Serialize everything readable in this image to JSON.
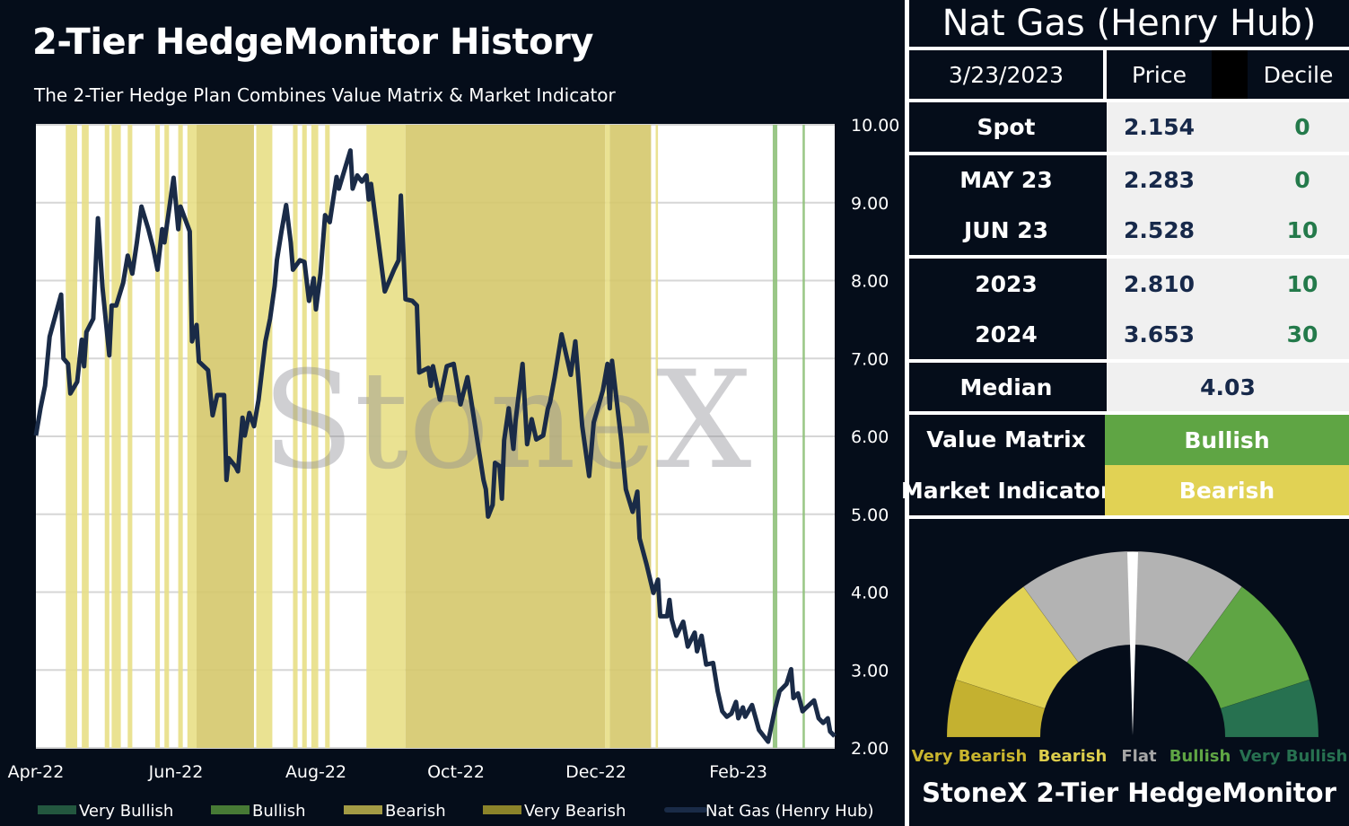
{
  "left": {
    "title": "2-Tier HedgeMonitor History",
    "subtitle": "The 2-Tier Hedge Plan Combines Value Matrix & Market Indicator",
    "watermark": "StoneX"
  },
  "chart_data": {
    "type": "line",
    "title": "2-Tier HedgeMonitor History",
    "subtitle": "The 2-Tier Hedge Plan Combines Value Matrix & Market Indicator",
    "xlabel": "",
    "ylabel": "",
    "xlim": [
      "2022-04-01",
      "2023-03-15"
    ],
    "ylim": [
      2,
      10
    ],
    "grid": true,
    "y_axis_side": "right",
    "x_ticks": [
      {
        "date": "2022-04-01",
        "label": "Apr-22"
      },
      {
        "date": "2022-06-01",
        "label": "Jun-22"
      },
      {
        "date": "2022-08-01",
        "label": "Aug-22"
      },
      {
        "date": "2022-10-01",
        "label": "Oct-22"
      },
      {
        "date": "2022-12-01",
        "label": "Dec-22"
      },
      {
        "date": "2023-02-01",
        "label": "Feb-23"
      }
    ],
    "y_ticks": [
      "2.00",
      "3.00",
      "4.00",
      "5.00",
      "6.00",
      "7.00",
      "8.00",
      "9.00",
      "10.00"
    ],
    "legend_position": "bottom",
    "legend": [
      {
        "name": "Very Bullish",
        "color": "#23573f",
        "kind": "box"
      },
      {
        "name": "Bullish",
        "color": "#477a35",
        "kind": "box"
      },
      {
        "name": "Bearish",
        "color": "#a39b45",
        "kind": "box"
      },
      {
        "name": "Very Bearish",
        "color": "#8b832a",
        "kind": "box"
      },
      {
        "name": "Nat Gas (Henry Hub)",
        "color": "#1a2b47",
        "kind": "line"
      }
    ],
    "band_colors": {
      "Bearish": "#e8df86",
      "Very Bearish": "#d5c86c",
      "Bullish": "#8fc17a",
      "Very Bullish": "#23573f"
    },
    "bands": [
      {
        "start": "2022-04-14",
        "end": "2022-04-19",
        "signal": "Bearish"
      },
      {
        "start": "2022-04-21",
        "end": "2022-04-24",
        "signal": "Bearish"
      },
      {
        "start": "2022-05-01",
        "end": "2022-05-03",
        "signal": "Bearish"
      },
      {
        "start": "2022-05-04",
        "end": "2022-05-08",
        "signal": "Bearish"
      },
      {
        "start": "2022-05-11",
        "end": "2022-05-13",
        "signal": "Bearish"
      },
      {
        "start": "2022-05-23",
        "end": "2022-05-25",
        "signal": "Bearish"
      },
      {
        "start": "2022-05-27",
        "end": "2022-05-29",
        "signal": "Bearish"
      },
      {
        "start": "2022-06-02",
        "end": "2022-06-04",
        "signal": "Bearish"
      },
      {
        "start": "2022-06-06",
        "end": "2022-06-10",
        "signal": "Bearish"
      },
      {
        "start": "2022-06-10",
        "end": "2022-07-05",
        "signal": "Very Bearish"
      },
      {
        "start": "2022-07-06",
        "end": "2022-07-13",
        "signal": "Bearish"
      },
      {
        "start": "2022-07-22",
        "end": "2022-07-24",
        "signal": "Bearish"
      },
      {
        "start": "2022-07-26",
        "end": "2022-07-28",
        "signal": "Bearish"
      },
      {
        "start": "2022-07-30",
        "end": "2022-08-02",
        "signal": "Bearish"
      },
      {
        "start": "2022-08-05",
        "end": "2022-08-07",
        "signal": "Bearish"
      },
      {
        "start": "2022-08-23",
        "end": "2022-09-09",
        "signal": "Bearish"
      },
      {
        "start": "2022-09-09",
        "end": "2022-12-05",
        "signal": "Very Bearish"
      },
      {
        "start": "2022-12-05",
        "end": "2022-12-07",
        "signal": "Bearish"
      },
      {
        "start": "2022-12-07",
        "end": "2022-12-25",
        "signal": "Very Bearish"
      },
      {
        "start": "2022-12-27",
        "end": "2022-12-28",
        "signal": "Bearish"
      },
      {
        "start": "2023-02-16",
        "end": "2023-02-18",
        "signal": "Bullish"
      },
      {
        "start": "2023-03-01",
        "end": "2023-03-02",
        "signal": "Bullish"
      }
    ],
    "series": [
      {
        "name": "Nat Gas (Henry Hub)",
        "color": "#1a2b47",
        "points": [
          [
            "2022-04-01",
            6.01
          ],
          [
            "2022-04-03",
            6.36
          ],
          [
            "2022-04-05",
            6.65
          ],
          [
            "2022-04-07",
            7.28
          ],
          [
            "2022-04-12",
            7.82
          ],
          [
            "2022-04-13",
            7.0
          ],
          [
            "2022-04-15",
            6.93
          ],
          [
            "2022-04-16",
            6.55
          ],
          [
            "2022-04-19",
            6.7
          ],
          [
            "2022-04-21",
            7.24
          ],
          [
            "2022-04-22",
            6.9
          ],
          [
            "2022-04-23",
            7.34
          ],
          [
            "2022-04-26",
            7.51
          ],
          [
            "2022-04-28",
            8.8
          ],
          [
            "2022-04-30",
            7.91
          ],
          [
            "2022-05-03",
            7.04
          ],
          [
            "2022-05-04",
            7.68
          ],
          [
            "2022-05-06",
            7.68
          ],
          [
            "2022-05-09",
            7.97
          ],
          [
            "2022-05-11",
            8.32
          ],
          [
            "2022-05-13",
            8.09
          ],
          [
            "2022-05-15",
            8.49
          ],
          [
            "2022-05-17",
            8.95
          ],
          [
            "2022-05-20",
            8.66
          ],
          [
            "2022-05-22",
            8.43
          ],
          [
            "2022-05-24",
            8.14
          ],
          [
            "2022-05-26",
            8.66
          ],
          [
            "2022-05-27",
            8.49
          ],
          [
            "2022-05-31",
            9.32
          ],
          [
            "2022-06-02",
            8.66
          ],
          [
            "2022-06-03",
            8.95
          ],
          [
            "2022-06-07",
            8.63
          ],
          [
            "2022-06-08",
            7.22
          ],
          [
            "2022-06-10",
            7.43
          ],
          [
            "2022-06-11",
            6.96
          ],
          [
            "2022-06-15",
            6.85
          ],
          [
            "2022-06-17",
            6.27
          ],
          [
            "2022-06-19",
            6.53
          ],
          [
            "2022-06-22",
            6.53
          ],
          [
            "2022-06-23",
            5.44
          ],
          [
            "2022-06-24",
            5.72
          ],
          [
            "2022-06-27",
            5.61
          ],
          [
            "2022-06-28",
            5.55
          ],
          [
            "2022-06-30",
            6.24
          ],
          [
            "2022-07-01",
            6.01
          ],
          [
            "2022-07-03",
            6.3
          ],
          [
            "2022-07-05",
            6.13
          ],
          [
            "2022-07-07",
            6.47
          ],
          [
            "2022-07-10",
            7.22
          ],
          [
            "2022-07-12",
            7.51
          ],
          [
            "2022-07-14",
            7.93
          ],
          [
            "2022-07-15",
            8.26
          ],
          [
            "2022-07-17",
            8.63
          ],
          [
            "2022-07-19",
            8.97
          ],
          [
            "2022-07-21",
            8.49
          ],
          [
            "2022-07-22",
            8.14
          ],
          [
            "2022-07-25",
            8.26
          ],
          [
            "2022-07-27",
            8.24
          ],
          [
            "2022-07-29",
            7.74
          ],
          [
            "2022-07-31",
            8.03
          ],
          [
            "2022-08-01",
            7.63
          ],
          [
            "2022-08-03",
            8.09
          ],
          [
            "2022-08-05",
            8.84
          ],
          [
            "2022-08-07",
            8.75
          ],
          [
            "2022-08-10",
            9.33
          ],
          [
            "2022-08-11",
            9.18
          ],
          [
            "2022-08-16",
            9.67
          ],
          [
            "2022-08-17",
            9.18
          ],
          [
            "2022-08-19",
            9.35
          ],
          [
            "2022-08-21",
            9.27
          ],
          [
            "2022-08-23",
            9.35
          ],
          [
            "2022-08-24",
            9.04
          ],
          [
            "2022-08-25",
            9.24
          ],
          [
            "2022-08-27",
            8.78
          ],
          [
            "2022-08-31",
            7.86
          ],
          [
            "2022-09-04",
            8.14
          ],
          [
            "2022-09-06",
            8.26
          ],
          [
            "2022-09-07",
            9.09
          ],
          [
            "2022-09-09",
            7.76
          ],
          [
            "2022-09-12",
            7.74
          ],
          [
            "2022-09-14",
            7.68
          ],
          [
            "2022-09-15",
            6.82
          ],
          [
            "2022-09-19",
            6.88
          ],
          [
            "2022-09-20",
            6.65
          ],
          [
            "2022-09-21",
            6.9
          ],
          [
            "2022-09-24",
            6.47
          ],
          [
            "2022-09-27",
            6.9
          ],
          [
            "2022-09-30",
            6.93
          ],
          [
            "2022-10-03",
            6.41
          ],
          [
            "2022-10-06",
            6.76
          ],
          [
            "2022-10-08",
            6.39
          ],
          [
            "2022-10-10",
            6.01
          ],
          [
            "2022-10-13",
            5.44
          ],
          [
            "2022-10-14",
            5.32
          ],
          [
            "2022-10-15",
            4.97
          ],
          [
            "2022-10-17",
            5.12
          ],
          [
            "2022-10-18",
            5.66
          ],
          [
            "2022-10-20",
            5.62
          ],
          [
            "2022-10-21",
            5.2
          ],
          [
            "2022-10-22",
            5.95
          ],
          [
            "2022-10-24",
            6.36
          ],
          [
            "2022-10-26",
            5.84
          ],
          [
            "2022-10-27",
            6.21
          ],
          [
            "2022-10-30",
            6.93
          ],
          [
            "2022-11-01",
            5.9
          ],
          [
            "2022-11-03",
            6.22
          ],
          [
            "2022-11-05",
            5.96
          ],
          [
            "2022-11-08",
            6.01
          ],
          [
            "2022-11-10",
            6.35
          ],
          [
            "2022-11-11",
            6.44
          ],
          [
            "2022-11-13",
            6.76
          ],
          [
            "2022-11-16",
            7.31
          ],
          [
            "2022-11-18",
            7.05
          ],
          [
            "2022-11-20",
            6.79
          ],
          [
            "2022-11-22",
            7.22
          ],
          [
            "2022-11-25",
            6.13
          ],
          [
            "2022-11-28",
            5.49
          ],
          [
            "2022-11-30",
            6.18
          ],
          [
            "2022-12-04",
            6.59
          ],
          [
            "2022-12-06",
            6.93
          ],
          [
            "2022-12-07",
            6.36
          ],
          [
            "2022-12-08",
            6.97
          ],
          [
            "2022-12-12",
            5.95
          ],
          [
            "2022-12-14",
            5.32
          ],
          [
            "2022-12-17",
            5.03
          ],
          [
            "2022-12-19",
            5.29
          ],
          [
            "2022-12-20",
            4.69
          ],
          [
            "2022-12-23",
            4.36
          ],
          [
            "2022-12-26",
            3.99
          ],
          [
            "2022-12-28",
            4.16
          ],
          [
            "2022-12-29",
            3.69
          ],
          [
            "2023-01-01",
            3.69
          ],
          [
            "2023-01-02",
            3.9
          ],
          [
            "2023-01-03",
            3.65
          ],
          [
            "2023-01-05",
            3.44
          ],
          [
            "2023-01-08",
            3.62
          ],
          [
            "2023-01-10",
            3.3
          ],
          [
            "2023-01-13",
            3.48
          ],
          [
            "2023-01-14",
            3.24
          ],
          [
            "2023-01-16",
            3.44
          ],
          [
            "2023-01-18",
            3.07
          ],
          [
            "2023-01-21",
            3.09
          ],
          [
            "2023-01-23",
            2.73
          ],
          [
            "2023-01-25",
            2.47
          ],
          [
            "2023-01-27",
            2.4
          ],
          [
            "2023-01-29",
            2.44
          ],
          [
            "2023-01-31",
            2.59
          ],
          [
            "2023-02-01",
            2.38
          ],
          [
            "2023-02-03",
            2.52
          ],
          [
            "2023-02-04",
            2.4
          ],
          [
            "2023-02-07",
            2.55
          ],
          [
            "2023-02-10",
            2.23
          ],
          [
            "2023-02-14",
            2.08
          ],
          [
            "2023-02-17",
            2.5
          ],
          [
            "2023-02-19",
            2.73
          ],
          [
            "2023-02-22",
            2.82
          ],
          [
            "2023-02-24",
            3.01
          ],
          [
            "2023-02-25",
            2.64
          ],
          [
            "2023-02-27",
            2.7
          ],
          [
            "2023-03-01",
            2.47
          ],
          [
            "2023-03-02",
            2.5
          ],
          [
            "2023-03-06",
            2.61
          ],
          [
            "2023-03-08",
            2.38
          ],
          [
            "2023-03-10",
            2.32
          ],
          [
            "2023-03-12",
            2.38
          ],
          [
            "2023-03-13",
            2.21
          ],
          [
            "2023-03-15",
            2.15
          ]
        ]
      }
    ]
  },
  "panel": {
    "title": "Nat Gas (Henry Hub)",
    "date": "3/23/2023",
    "price_header": "Price",
    "decile_header": "Decile",
    "rows": [
      {
        "label": "Spot",
        "price": "2.154",
        "decile": "0"
      },
      {
        "label": "MAY 23",
        "price": "2.283",
        "decile": "0"
      },
      {
        "label": "JUN 23",
        "price": "2.528",
        "decile": "10"
      },
      {
        "label": "2023",
        "price": "2.810",
        "decile": "10"
      },
      {
        "label": "2024",
        "price": "3.653",
        "decile": "30"
      }
    ],
    "median_label": "Median",
    "median_value": "4.03",
    "value_matrix_label": "Value Matrix",
    "value_matrix_value": "Bullish",
    "value_matrix_color": "#5fa544",
    "market_indicator_label": "Market Indicator",
    "market_indicator_value": "Bearish",
    "market_indicator_color": "#e1d254"
  },
  "gauge": {
    "title": "StoneX 2-Tier HedgeMonitor",
    "needle_value": "Flat",
    "segments": [
      {
        "label": "Very Bearish",
        "color": "#c4b130",
        "text_color": "#c9b52e"
      },
      {
        "label": "Bearish",
        "color": "#e1d254",
        "text_color": "#dccd4c"
      },
      {
        "label": "Flat",
        "color": "#b3b3b3",
        "text_color": "#a6a6a6"
      },
      {
        "label": "Bullish",
        "color": "#5fa544",
        "text_color": "#5fa544"
      },
      {
        "label": "Very Bullish",
        "color": "#277150",
        "text_color": "#277150"
      }
    ]
  }
}
